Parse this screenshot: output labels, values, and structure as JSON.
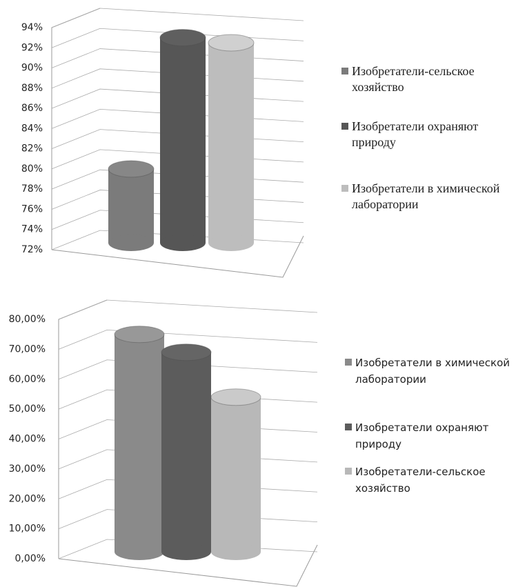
{
  "chart_data": [
    {
      "type": "bar",
      "series": [
        {
          "name": "Изобретатели-сельское хозяйство",
          "color": "#7b7b7b",
          "values": [
            80
          ]
        },
        {
          "name": "Изобретатели охраняют природу",
          "color": "#565656",
          "values": [
            93
          ]
        },
        {
          "name": "Изобретатели в химической лаборатории",
          "color": "#bdbdbd",
          "values": [
            92.5
          ]
        }
      ],
      "ylim": [
        72,
        94
      ],
      "yticks": [
        {
          "value": 72,
          "label": "72%"
        },
        {
          "value": 74,
          "label": "74%"
        },
        {
          "value": 76,
          "label": "76%"
        },
        {
          "value": 78,
          "label": "78%"
        },
        {
          "value": 80,
          "label": "80%"
        },
        {
          "value": 82,
          "label": "82%"
        },
        {
          "value": 84,
          "label": "84%"
        },
        {
          "value": 86,
          "label": "86%"
        },
        {
          "value": 88,
          "label": "88%"
        },
        {
          "value": 90,
          "label": "90%"
        },
        {
          "value": 92,
          "label": "92%"
        },
        {
          "value": 94,
          "label": "94%"
        }
      ],
      "grid": true
    },
    {
      "type": "bar",
      "series": [
        {
          "name": "Изобретатели в химической лаборатории",
          "color": "#8a8a8a",
          "values": [
            75
          ]
        },
        {
          "name": "Изобретатели охраняют природу",
          "color": "#5c5c5c",
          "values": [
            69
          ]
        },
        {
          "name": "Изобретатели-сельское хозяйство",
          "color": "#b8b8b8",
          "values": [
            54
          ]
        }
      ],
      "ylim": [
        0,
        80
      ],
      "yticks": [
        {
          "value": 0,
          "label": "0,00%"
        },
        {
          "value": 10,
          "label": "10,00%"
        },
        {
          "value": 20,
          "label": "20,00%"
        },
        {
          "value": 30,
          "label": "30,00%"
        },
        {
          "value": 40,
          "label": "40,00%"
        },
        {
          "value": 50,
          "label": "50,00%"
        },
        {
          "value": 60,
          "label": "60,00%"
        },
        {
          "value": 70,
          "label": "70,00%"
        },
        {
          "value": 80,
          "label": "80,00%"
        }
      ],
      "grid": true
    }
  ]
}
